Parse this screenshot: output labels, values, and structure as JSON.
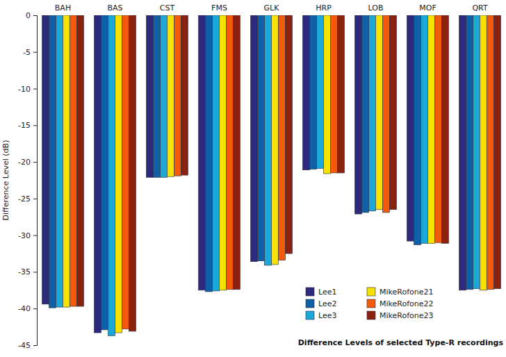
{
  "chart_data": {
    "type": "bar",
    "title": "Difference Levels of selected Type-R recordings",
    "y_label": "Difference Level (dB)",
    "categories": [
      "BAH",
      "BAS",
      "CST",
      "FMS",
      "GLK",
      "HRP",
      "LOB",
      "MOF",
      "QRT"
    ],
    "series": [
      {
        "name": "Lee1",
        "color": "#2b2a7c",
        "values": [
          -39.4,
          -43.3,
          -22.1,
          -37.5,
          -33.6,
          -21.1,
          -27.1,
          -30.8,
          -37.5
        ]
      },
      {
        "name": "Lee2",
        "color": "#1060a8",
        "values": [
          -39.9,
          -42.9,
          -22.1,
          -37.7,
          -33.5,
          -21.0,
          -26.9,
          -31.3,
          -37.4
        ]
      },
      {
        "name": "Lee3",
        "color": "#1ba7d8",
        "values": [
          -39.8,
          -43.7,
          -22.1,
          -37.6,
          -34.1,
          -20.9,
          -26.7,
          -31.1,
          -37.3
        ]
      },
      {
        "name": "MikeRofone21",
        "color": "#f6e200",
        "values": [
          -39.8,
          -43.3,
          -22.0,
          -37.5,
          -34.0,
          -21.6,
          -26.5,
          -31.1,
          -37.5
        ]
      },
      {
        "name": "MikeRofone22",
        "color": "#f25a0c",
        "values": [
          -39.7,
          -42.8,
          -21.9,
          -37.4,
          -33.4,
          -21.5,
          -26.9,
          -31.0,
          -37.4
        ]
      },
      {
        "name": "MikeRofone23",
        "color": "#8b2210",
        "values": [
          -39.7,
          -43.1,
          -21.8,
          -37.4,
          -32.5,
          -21.5,
          -26.5,
          -31.1,
          -37.3
        ]
      }
    ],
    "ylim": [
      -45,
      0
    ],
    "yticks": [
      0,
      -5,
      -10,
      -15,
      -20,
      -25,
      -30,
      -35,
      -40,
      -45
    ],
    "grid": false,
    "legend": "lower right"
  }
}
